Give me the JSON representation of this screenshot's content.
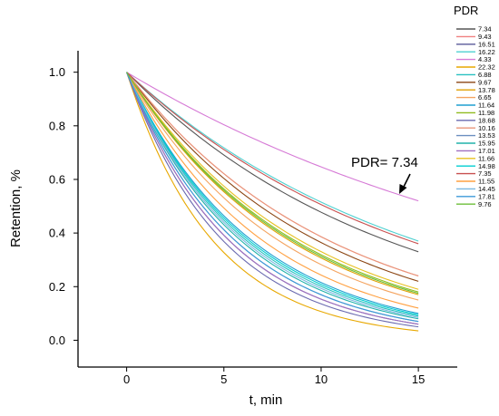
{
  "chart_data": {
    "type": "line",
    "xlabel": "t, min",
    "ylabel": "Retention, %",
    "xlim": [
      -2.5,
      17
    ],
    "ylim": [
      -0.1,
      1.08
    ],
    "xticks": [
      0,
      5,
      10,
      15
    ],
    "yticks": [
      0.0,
      0.2,
      0.4,
      0.6,
      0.8,
      1.0
    ],
    "xtick_labels": [
      "0",
      "5",
      "10",
      "15"
    ],
    "ytick_labels": [
      "0.0",
      "0.2",
      "0.4",
      "0.6",
      "0.8",
      "1.0"
    ],
    "legend_title": "PDR",
    "legend_position": "right",
    "annotation": "PDR= 7.34",
    "x": [
      0,
      15
    ],
    "series": [
      {
        "name": "7.34",
        "color": "#555555",
        "end_value": 0.33
      },
      {
        "name": "9.43",
        "color": "#f08080",
        "end_value": 0.24
      },
      {
        "name": "16.51",
        "color": "#5a5a9a",
        "end_value": 0.06
      },
      {
        "name": "16.22",
        "color": "#4dd0d0",
        "end_value": 0.37
      },
      {
        "name": "4.33",
        "color": "#d67ad6",
        "end_value": 0.52
      },
      {
        "name": "22.32",
        "color": "#e8a800",
        "end_value": 0.035
      },
      {
        "name": "6.88",
        "color": "#28c0c0",
        "end_value": 0.09
      },
      {
        "name": "9.67",
        "color": "#8b4513",
        "end_value": 0.22
      },
      {
        "name": "13.78",
        "color": "#e0a000",
        "end_value": 0.17
      },
      {
        "name": "6.65",
        "color": "#f4a460",
        "end_value": 0.15
      },
      {
        "name": "11.64",
        "color": "#1e9fd0",
        "end_value": 0.1
      },
      {
        "name": "11.98",
        "color": "#8fbc1f",
        "end_value": 0.18
      },
      {
        "name": "18.68",
        "color": "#6a6ab0",
        "end_value": 0.05
      },
      {
        "name": "10.16",
        "color": "#e9967a",
        "end_value": 0.24
      },
      {
        "name": "13.53",
        "color": "#6b8ec0",
        "end_value": 0.07
      },
      {
        "name": "15.95",
        "color": "#20b2aa",
        "end_value": 0.08
      },
      {
        "name": "17.01",
        "color": "#a070c0",
        "end_value": 0.06
      },
      {
        "name": "11.66",
        "color": "#e8c020",
        "end_value": 0.19
      },
      {
        "name": "14.98",
        "color": "#00ced1",
        "end_value": 0.095
      },
      {
        "name": "7.35",
        "color": "#c85050",
        "end_value": 0.36
      },
      {
        "name": "11.55",
        "color": "#ffa040",
        "end_value": 0.12
      },
      {
        "name": "14.45",
        "color": "#7ab8e0",
        "end_value": 0.085
      },
      {
        "name": "17.81",
        "color": "#3c9ad8",
        "end_value": 0.07
      },
      {
        "name": "9.76",
        "color": "#6dbf3a",
        "end_value": 0.175
      }
    ]
  }
}
